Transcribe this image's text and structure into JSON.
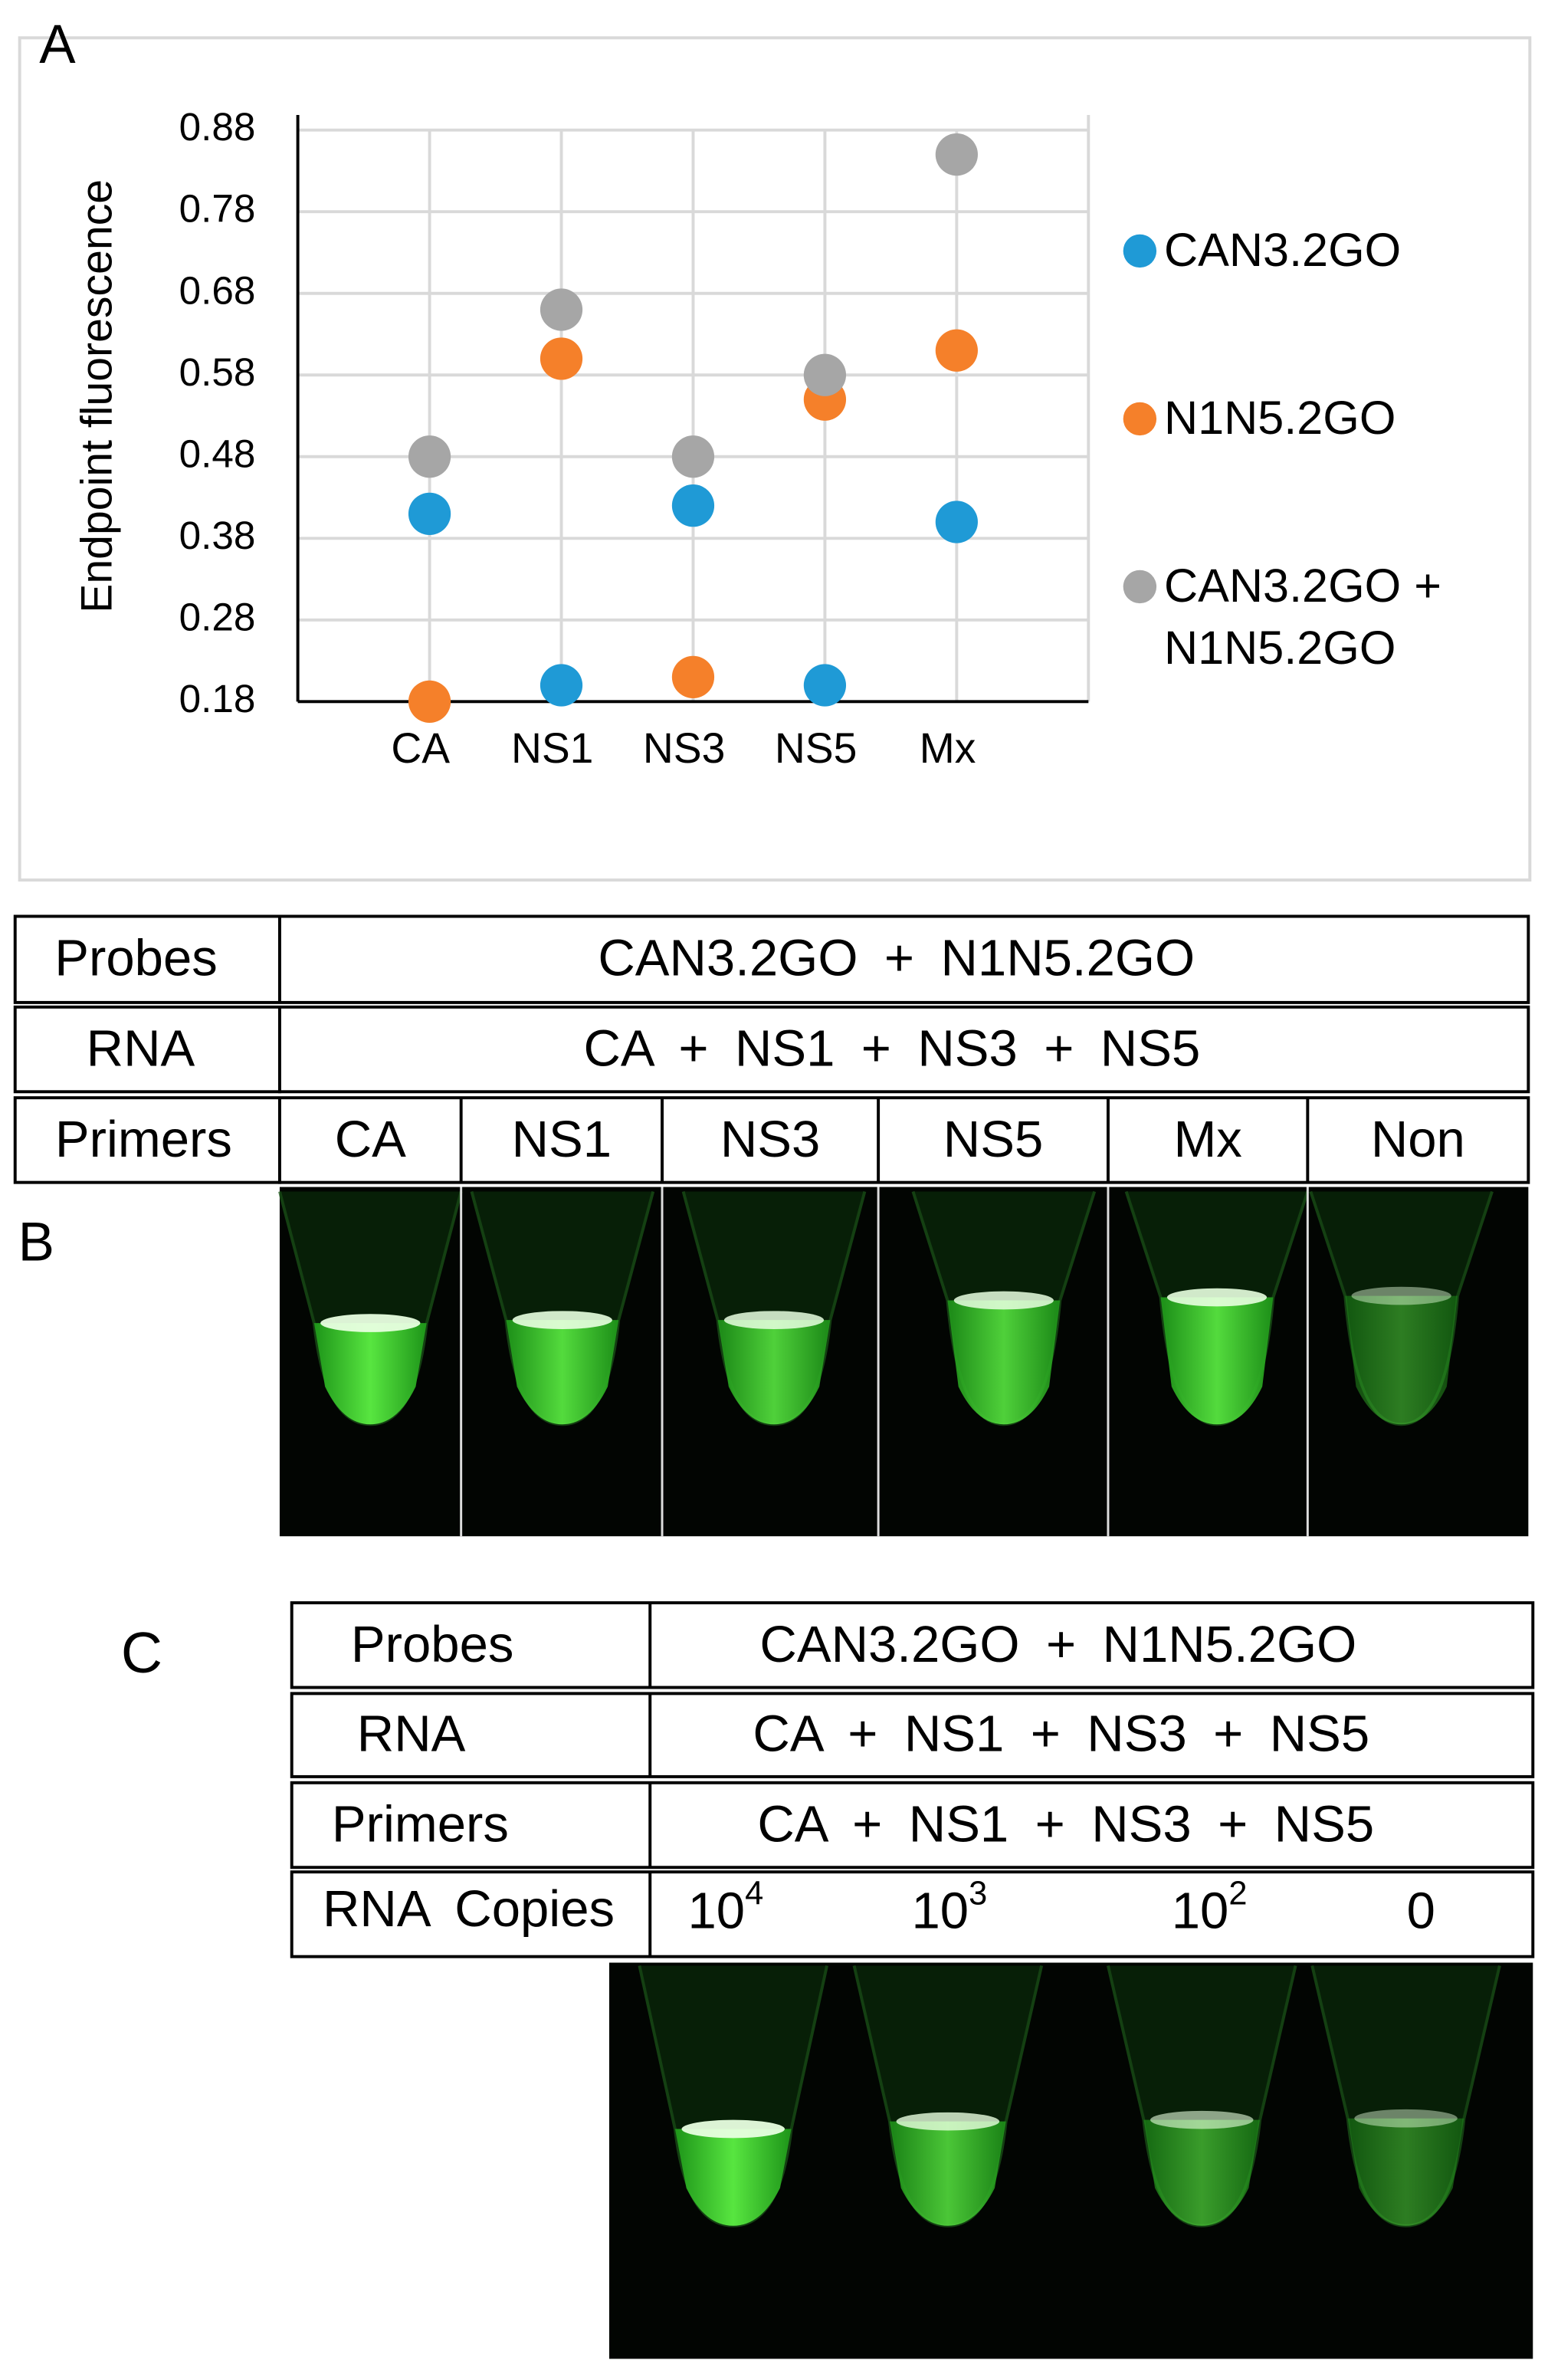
{
  "chart_data": {
    "type": "scatter",
    "panel": "A",
    "ylabel": "Endpoint fluorescence",
    "categories": [
      "CA",
      "NS1",
      "NS3",
      "NS5",
      "Mx"
    ],
    "ylim": [
      0.18,
      0.88
    ],
    "yticks": [
      0.18,
      0.28,
      0.38,
      0.48,
      0.58,
      0.68,
      0.78,
      0.88
    ],
    "grid": true,
    "legend": "right",
    "series": [
      {
        "name": "CAN3.2GO",
        "color": "#1f9ad6",
        "values": [
          0.41,
          0.2,
          0.42,
          0.2,
          0.4
        ]
      },
      {
        "name": "N1N5.2GO",
        "color": "#f5802a",
        "values": [
          0.18,
          0.6,
          0.21,
          0.55,
          0.61
        ]
      },
      {
        "name": "CAN3.2GO + N1N5.2GO",
        "color": "#a6a6a6",
        "values": [
          0.48,
          0.66,
          0.48,
          0.58,
          0.85
        ]
      }
    ]
  },
  "panel_b": {
    "label": "B",
    "probes": [
      "Probes",
      "CAN3.2GO + N1N5.2GO"
    ],
    "rna": [
      "RNA",
      "CA + NS1 + NS3 + NS5"
    ],
    "primers": [
      "Primers",
      "CA",
      "NS1",
      "NS3",
      "NS5",
      "Mx",
      "Non"
    ]
  },
  "panel_c": {
    "label": "C",
    "probes": [
      "Probes",
      "CAN3.2GO + N1N5.2GO"
    ],
    "rna": [
      "RNA",
      "CA + NS1 + NS3 + NS5"
    ],
    "primers": [
      "Primers",
      "CA + NS1 + NS3 + NS5"
    ],
    "copies_label": "RNA Copies",
    "copies": [
      {
        "base": "10",
        "exp": "4"
      },
      {
        "base": "10",
        "exp": "3"
      },
      {
        "base": "10",
        "exp": "2"
      },
      {
        "base": "0"
      }
    ]
  }
}
